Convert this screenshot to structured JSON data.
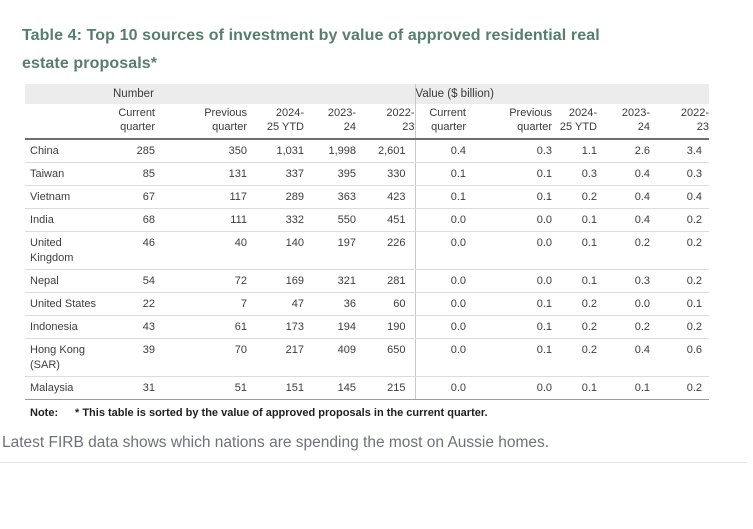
{
  "page": {
    "title": "Table 4: Top 10 sources of investment by value of approved residential real estate proposals*",
    "title_color": "#567e6d",
    "caption": "Latest FIRB data shows which nations are spending the most on Aussie homes."
  },
  "table": {
    "group_headers": [
      {
        "label": "Number"
      },
      {
        "label": "Value ($ billion)"
      }
    ],
    "column_headers": [
      [
        "Current",
        "quarter"
      ],
      [
        "Previous",
        "quarter"
      ],
      [
        "2024-",
        "25 YTD"
      ],
      [
        "2023-",
        "24"
      ],
      [
        "2022-",
        "23"
      ],
      [
        "Current",
        "quarter"
      ],
      [
        "Previous",
        "quarter"
      ],
      [
        "2024-",
        "25 YTD"
      ],
      [
        "2023-",
        "24"
      ],
      [
        "2022-",
        "23"
      ]
    ],
    "rows": [
      {
        "country": "China",
        "number": [
          "285",
          "350",
          "1,031",
          "1,998",
          "2,601"
        ],
        "value": [
          "0.4",
          "0.3",
          "1.1",
          "2.6",
          "3.4"
        ]
      },
      {
        "country": "Taiwan",
        "number": [
          "85",
          "131",
          "337",
          "395",
          "330"
        ],
        "value": [
          "0.1",
          "0.1",
          "0.3",
          "0.4",
          "0.3"
        ]
      },
      {
        "country": "Vietnam",
        "number": [
          "67",
          "117",
          "289",
          "363",
          "423"
        ],
        "value": [
          "0.1",
          "0.1",
          "0.2",
          "0.4",
          "0.4"
        ]
      },
      {
        "country": "India",
        "number": [
          "68",
          "111",
          "332",
          "550",
          "451"
        ],
        "value": [
          "0.0",
          "0.0",
          "0.1",
          "0.4",
          "0.2"
        ]
      },
      {
        "country": "United Kingdom",
        "number": [
          "46",
          "40",
          "140",
          "197",
          "226"
        ],
        "value": [
          "0.0",
          "0.0",
          "0.1",
          "0.2",
          "0.2"
        ]
      },
      {
        "country": "Nepal",
        "number": [
          "54",
          "72",
          "169",
          "321",
          "281"
        ],
        "value": [
          "0.0",
          "0.0",
          "0.1",
          "0.3",
          "0.2"
        ]
      },
      {
        "country": "United States",
        "number": [
          "22",
          "7",
          "47",
          "36",
          "60"
        ],
        "value": [
          "0.0",
          "0.1",
          "0.2",
          "0.0",
          "0.1"
        ]
      },
      {
        "country": "Indonesia",
        "number": [
          "43",
          "61",
          "173",
          "194",
          "190"
        ],
        "value": [
          "0.0",
          "0.1",
          "0.2",
          "0.2",
          "0.2"
        ]
      },
      {
        "country": "Hong Kong (SAR)",
        "number": [
          "39",
          "70",
          "217",
          "409",
          "650"
        ],
        "value": [
          "0.0",
          "0.1",
          "0.2",
          "0.4",
          "0.6"
        ]
      },
      {
        "country": "Malaysia",
        "number": [
          "31",
          "51",
          "151",
          "145",
          "215"
        ],
        "value": [
          "0.0",
          "0.0",
          "0.1",
          "0.1",
          "0.2"
        ]
      }
    ],
    "note_label": "Note:",
    "note_text": "* This table is sorted by the value of approved proposals in the current quarter."
  }
}
